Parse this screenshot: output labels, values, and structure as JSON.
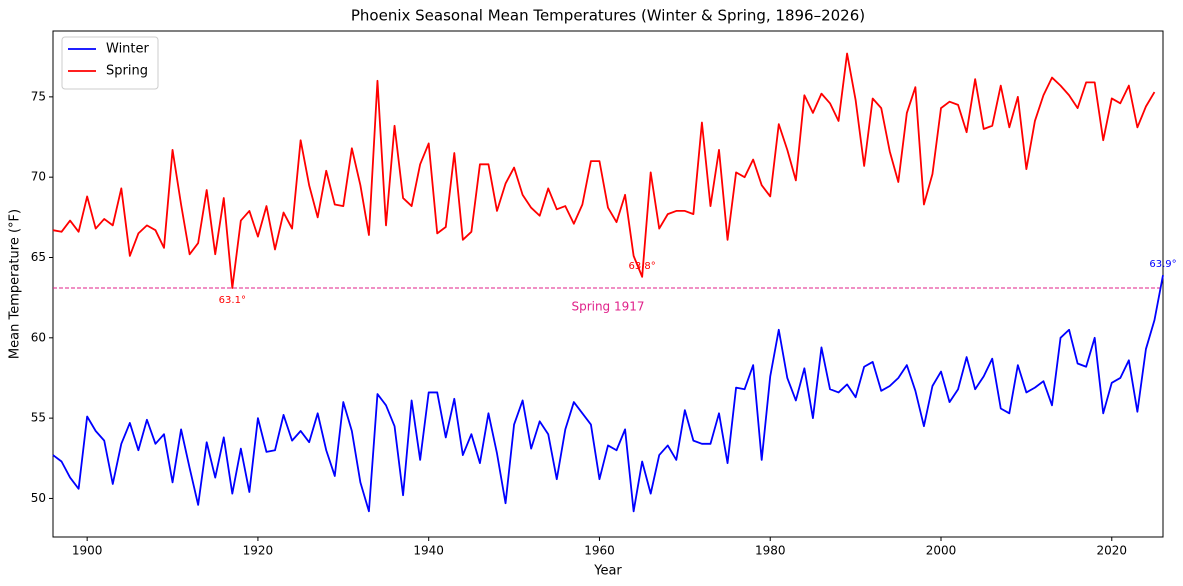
{
  "chart_data": {
    "type": "line",
    "title": "Phoenix Seasonal Mean Temperatures (Winter & Spring, 1896–2026)",
    "x_label": "Year",
    "y_label": "Mean Temperature (°F)",
    "x": [
      1896,
      1897,
      1898,
      1899,
      1900,
      1901,
      1902,
      1903,
      1904,
      1905,
      1906,
      1907,
      1908,
      1909,
      1910,
      1911,
      1912,
      1913,
      1914,
      1915,
      1916,
      1917,
      1918,
      1919,
      1920,
      1921,
      1922,
      1923,
      1924,
      1925,
      1926,
      1927,
      1928,
      1929,
      1930,
      1931,
      1932,
      1933,
      1934,
      1935,
      1936,
      1937,
      1938,
      1939,
      1940,
      1941,
      1942,
      1943,
      1944,
      1945,
      1946,
      1947,
      1948,
      1949,
      1950,
      1951,
      1952,
      1953,
      1954,
      1955,
      1956,
      1957,
      1958,
      1959,
      1960,
      1961,
      1962,
      1963,
      1964,
      1965,
      1966,
      1967,
      1968,
      1969,
      1970,
      1971,
      1972,
      1973,
      1974,
      1975,
      1976,
      1977,
      1978,
      1979,
      1980,
      1981,
      1982,
      1983,
      1984,
      1985,
      1986,
      1987,
      1988,
      1989,
      1990,
      1991,
      1992,
      1993,
      1994,
      1995,
      1996,
      1997,
      1998,
      1999,
      2000,
      2001,
      2002,
      2003,
      2004,
      2005,
      2006,
      2007,
      2008,
      2009,
      2010,
      2011,
      2012,
      2013,
      2014,
      2015,
      2016,
      2017,
      2018,
      2019,
      2020,
      2021,
      2022,
      2023,
      2024,
      2025,
      2026
    ],
    "series": [
      {
        "name": "Winter",
        "color": "#0000ff",
        "values": [
          52.7,
          52.3,
          51.3,
          50.6,
          55.1,
          54.2,
          53.6,
          50.9,
          53.4,
          54.7,
          53.0,
          54.9,
          53.4,
          54.0,
          51.0,
          54.3,
          51.9,
          49.6,
          53.5,
          51.3,
          53.8,
          50.3,
          53.1,
          50.4,
          55.0,
          52.9,
          53.0,
          55.2,
          53.6,
          54.2,
          53.5,
          55.3,
          53.0,
          51.4,
          56.0,
          54.2,
          51.0,
          49.2,
          56.5,
          55.8,
          54.5,
          50.2,
          56.1,
          52.4,
          56.6,
          56.6,
          53.8,
          56.2,
          52.7,
          54.0,
          52.2,
          55.3,
          52.8,
          49.7,
          54.6,
          56.1,
          53.1,
          54.8,
          54.0,
          51.2,
          54.3,
          56.0,
          55.3,
          54.6,
          51.2,
          53.3,
          53.0,
          54.3,
          49.2,
          52.3,
          50.3,
          52.7,
          53.3,
          52.4,
          55.5,
          53.6,
          53.4,
          53.4,
          55.3,
          52.2,
          56.9,
          56.8,
          58.3,
          52.4,
          57.6,
          60.5,
          57.5,
          56.1,
          58.1,
          55.0,
          59.4,
          56.8,
          56.6,
          57.1,
          56.3,
          58.2,
          58.5,
          56.7,
          57.0,
          57.5,
          58.3,
          56.7,
          54.5,
          57.0,
          57.9,
          56.0,
          56.8,
          58.8,
          56.8,
          57.6,
          58.7,
          55.6,
          55.3,
          58.3,
          56.6,
          56.9,
          57.3,
          55.8,
          60.0,
          60.5,
          58.4,
          58.2,
          60.0,
          55.3,
          57.2,
          57.5,
          58.6,
          55.4,
          59.3,
          61.1,
          63.9
        ]
      },
      {
        "name": "Spring",
        "color": "#ff0000",
        "values": [
          66.7,
          66.6,
          67.3,
          66.6,
          68.8,
          66.8,
          67.4,
          67.0,
          69.3,
          65.1,
          66.5,
          67.0,
          66.7,
          65.6,
          71.7,
          68.3,
          65.2,
          65.9,
          69.2,
          65.2,
          68.7,
          63.1,
          67.3,
          67.9,
          66.3,
          68.2,
          65.5,
          67.8,
          66.8,
          72.3,
          69.5,
          67.5,
          70.4,
          68.3,
          68.2,
          71.8,
          69.5,
          66.4,
          76.0,
          67.0,
          73.2,
          68.7,
          68.2,
          70.8,
          72.1,
          66.5,
          66.9,
          71.5,
          66.1,
          66.6,
          70.8,
          70.8,
          67.9,
          69.6,
          70.6,
          68.9,
          68.1,
          67.6,
          69.3,
          68.0,
          68.2,
          67.1,
          68.3,
          71.0,
          71.0,
          68.1,
          67.2,
          68.9,
          65.1,
          63.8,
          70.3,
          66.8,
          67.7,
          67.9,
          67.9,
          67.7,
          73.4,
          68.2,
          71.7,
          66.1,
          70.3,
          70.0,
          71.1,
          69.5,
          68.8,
          73.3,
          71.7,
          69.8,
          75.1,
          74.0,
          75.2,
          74.6,
          73.5,
          77.7,
          74.8,
          70.7,
          74.9,
          74.3,
          71.6,
          69.7,
          74.0,
          75.6,
          68.3,
          70.2,
          74.3,
          74.7,
          74.5,
          72.8,
          76.1,
          73.0,
          73.2,
          75.7,
          73.1,
          75.0,
          70.5,
          73.5,
          75.1,
          76.2,
          75.7,
          75.1,
          74.3,
          75.9,
          75.9,
          72.3,
          74.9,
          74.6,
          75.7,
          73.1,
          74.4,
          75.3,
          null
        ]
      }
    ],
    "xlim": [
      1896,
      2026
    ],
    "xticks": [
      1900,
      1920,
      1940,
      1960,
      1980,
      2000,
      2020
    ],
    "ylim": [
      47.6,
      79.1
    ],
    "yticks": [
      50,
      55,
      60,
      65,
      70,
      75
    ],
    "legend": "upper left",
    "reference_line": {
      "value": 63.1,
      "label": "Spring 1917",
      "color": "#e0218a"
    },
    "annotations": [
      {
        "x": 1917,
        "value": 63.1,
        "label": "63.1°",
        "series": "Spring"
      },
      {
        "x": 1965,
        "value": 63.8,
        "label": "63.8°",
        "series": "Spring"
      },
      {
        "x": 2026,
        "value": 63.9,
        "label": "63.9°",
        "series": "Winter"
      }
    ]
  }
}
